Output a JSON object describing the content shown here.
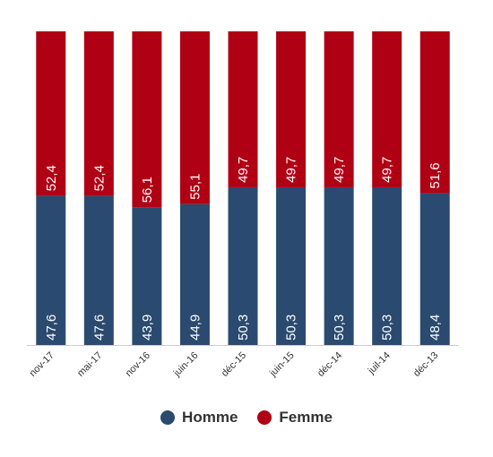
{
  "chart_data": {
    "type": "bar",
    "stacked": true,
    "categories": [
      "nov-17",
      "mai-17",
      "nov-16",
      "juin-16",
      "déc-15",
      "juin-15",
      "déc-14",
      "juil-14",
      "déc-13"
    ],
    "series": [
      {
        "name": "Homme",
        "color": "#2b4a6f",
        "values": [
          47.6,
          47.6,
          43.9,
          44.9,
          50.3,
          50.3,
          50.3,
          50.3,
          48.4
        ],
        "labels": [
          "47,6",
          "47,6",
          "43,9",
          "44,9",
          "50,3",
          "50,3",
          "50,3",
          "50,3",
          "48,4"
        ]
      },
      {
        "name": "Femme",
        "color": "#b00014",
        "values": [
          52.4,
          52.4,
          56.1,
          55.1,
          49.7,
          49.7,
          49.7,
          49.7,
          51.6
        ],
        "labels": [
          "52,4",
          "52,4",
          "56,1",
          "55,1",
          "49,7",
          "49,7",
          "49,7",
          "49,7",
          "51,6"
        ]
      }
    ],
    "ylim": [
      0,
      100
    ],
    "grid": false,
    "legend_position": "bottom-center"
  }
}
